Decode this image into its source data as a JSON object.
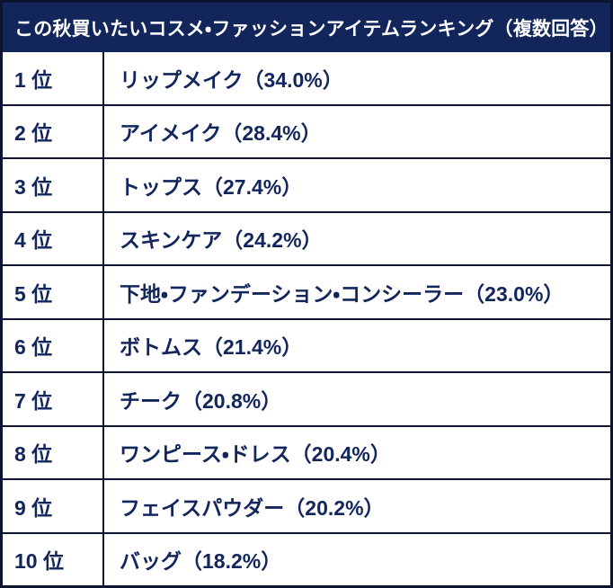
{
  "title": "この秋買いたいコスメ・ファッションアイテムランキング（複数回答）",
  "rows": [
    {
      "rank": "1 位",
      "item": "リップメイク（34.0%）"
    },
    {
      "rank": "2 位",
      "item": "アイメイク（28.4%）"
    },
    {
      "rank": "3 位",
      "item": "トップス（27.4%）"
    },
    {
      "rank": "4 位",
      "item": "スキンケア（24.2%）"
    },
    {
      "rank": "5 位",
      "item": "下地・ファンデーション・コンシーラー（23.0%）"
    },
    {
      "rank": "6 位",
      "item": "ボトムス（21.4%）"
    },
    {
      "rank": "7 位",
      "item": "チーク（20.8%）"
    },
    {
      "rank": "8 位",
      "item": "ワンピース・ドレス（20.4%）"
    },
    {
      "rank": "9 位",
      "item": "フェイスパウダー（20.2%）"
    },
    {
      "rank": "10 位",
      "item": "バッグ（18.2%）"
    }
  ],
  "colors": {
    "header_bg": "#12265c",
    "row_text": "#12265c",
    "border": "#0d1430",
    "header_text": "#ffffff",
    "row_bg": "#ffffff"
  },
  "chart_data": {
    "type": "table",
    "title": "この秋買いたいコスメ・ファッションアイテムランキング（複数回答）",
    "ranks": [
      1,
      2,
      3,
      4,
      5,
      6,
      7,
      8,
      9,
      10
    ],
    "items": [
      "リップメイク",
      "アイメイク",
      "トップス",
      "スキンケア",
      "下地・ファンデーション・コンシーラー",
      "ボトムス",
      "チーク",
      "ワンピース・ドレス",
      "フェイスパウダー",
      "バッグ"
    ],
    "values_percent": [
      34.0,
      28.4,
      27.4,
      24.2,
      23.0,
      21.4,
      20.8,
      20.4,
      20.2,
      18.2
    ],
    "layout": "ranking-table, header band on top, rank column left, grid on"
  }
}
